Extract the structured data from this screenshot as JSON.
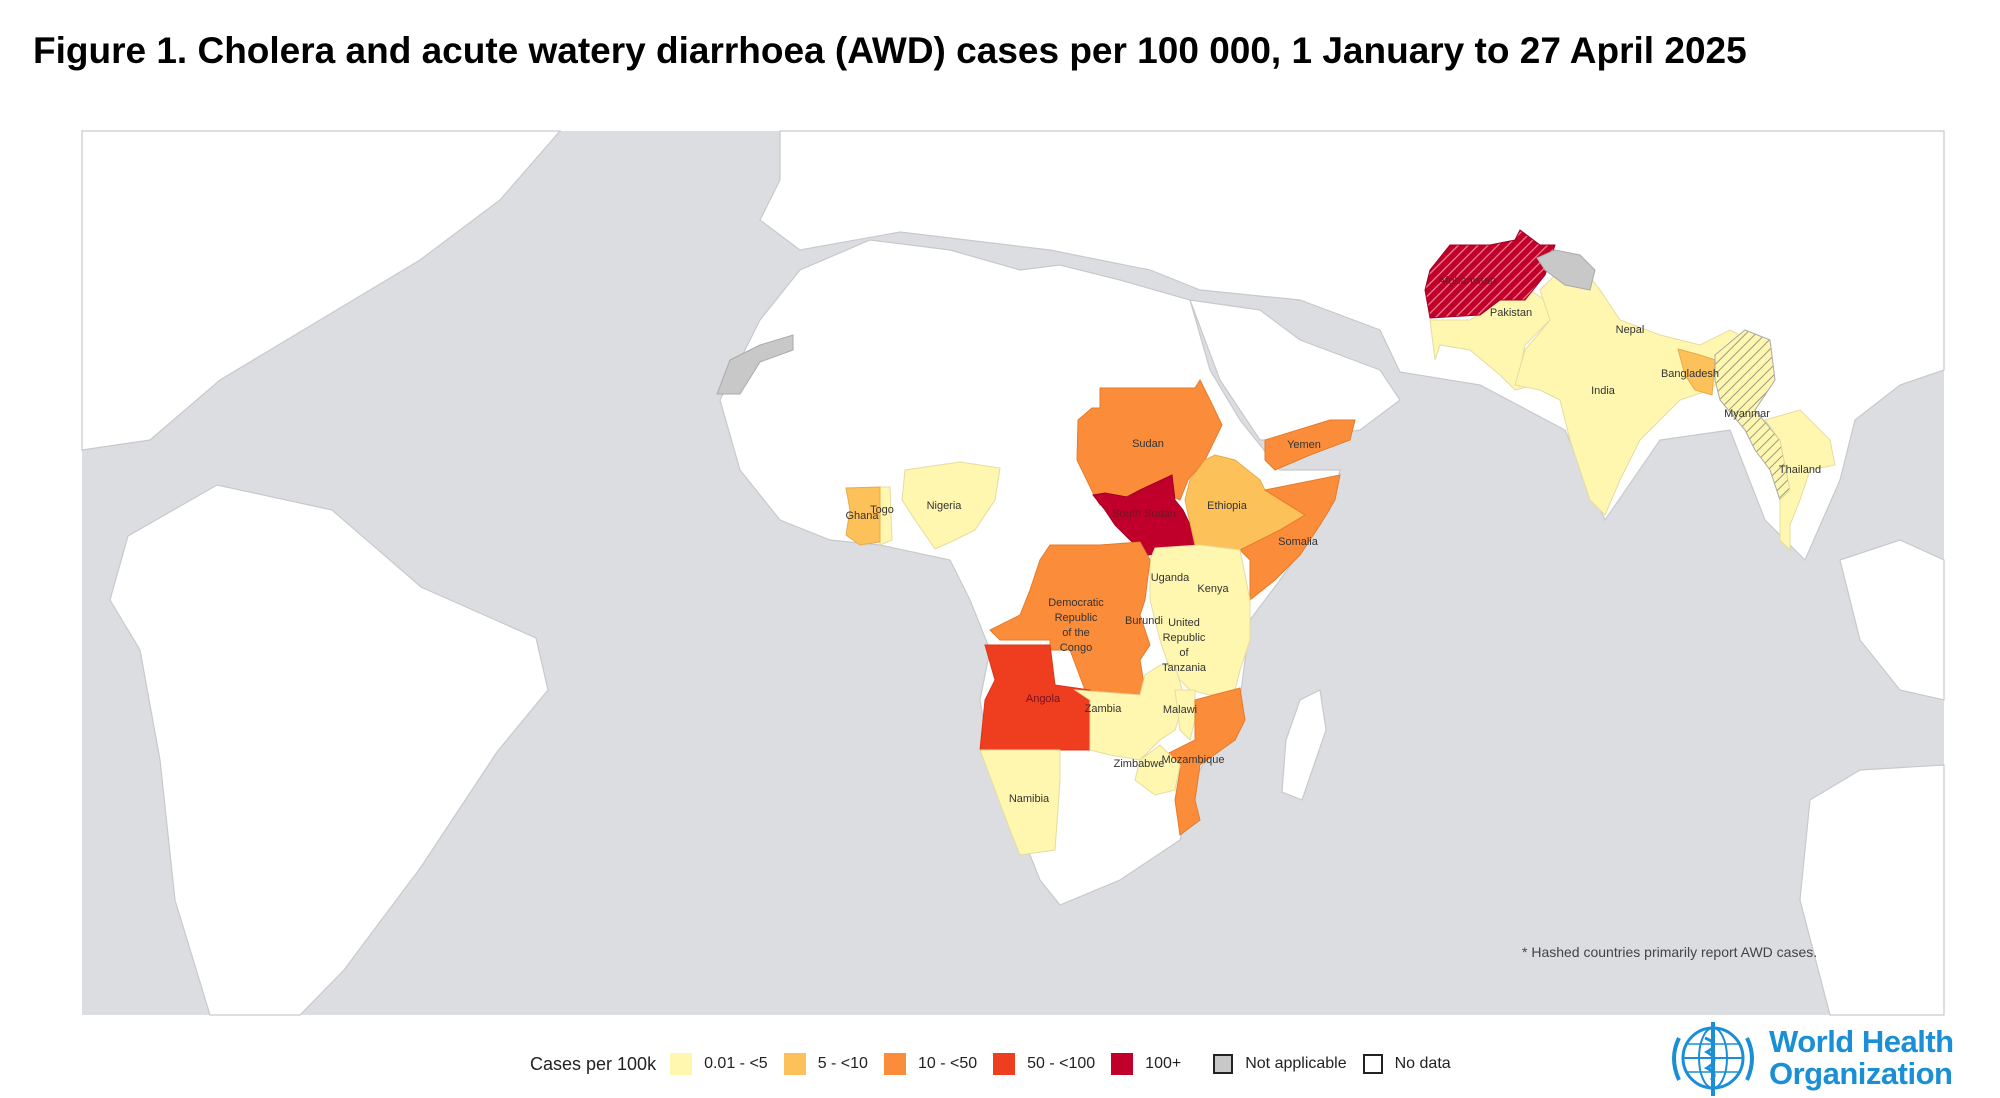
{
  "title": "Figure 1. Cholera and acute watery diarrhoea (AWD) cases per 100 000, 1 January to 27 April 2025",
  "footnote": "* Hashed countries primarily report AWD cases.",
  "colors": {
    "ocean": "#dcdde0",
    "land": "#ffffff",
    "cat1": "#fff7b0",
    "cat2": "#fdc15a",
    "cat3": "#fb8d3a",
    "cat4": "#ef3e1f",
    "cat5": "#c0002a",
    "not_applicable": "#c8c8c8",
    "who_blue": "#1a8fd6"
  },
  "legend": {
    "title": "Cases per 100k",
    "items": [
      {
        "label": "0.01 - <5",
        "color": "#fff7b0"
      },
      {
        "label": "5 - <10",
        "color": "#fdc15a"
      },
      {
        "label": "10 - <50",
        "color": "#fb8d3a"
      },
      {
        "label": "50 - <100",
        "color": "#ef3e1f"
      },
      {
        "label": "100+",
        "color": "#c0002a"
      },
      {
        "label": "Not applicable",
        "color": "#c8c8c8"
      },
      {
        "label": "No data",
        "color": "#ffffff"
      }
    ]
  },
  "countries": {
    "sudan": {
      "name": "Sudan",
      "category": "10 - <50"
    },
    "south_sudan": {
      "name": "South Sudan",
      "category": "100+"
    },
    "ethiopia": {
      "name": "Ethiopia",
      "category": "5 - <10"
    },
    "somalia": {
      "name": "Somalia",
      "category": "10 - <50"
    },
    "yemen": {
      "name": "Yemen",
      "category": "10 - <50"
    },
    "uganda": {
      "name": "Uganda",
      "category": "0.01 - <5"
    },
    "kenya": {
      "name": "Kenya",
      "category": "0.01 - <5"
    },
    "burundi": {
      "name": "Burundi",
      "category": "0.01 - <5"
    },
    "tanzania": {
      "name": [
        "United",
        "Republic",
        "of",
        "Tanzania"
      ],
      "category": "0.01 - <5"
    },
    "drc": {
      "name": [
        "Democratic",
        "Republic",
        "of the",
        "Congo"
      ],
      "category": "10 - <50"
    },
    "angola": {
      "name": "Angola",
      "category": "50 - <100"
    },
    "zambia": {
      "name": "Zambia",
      "category": "0.01 - <5"
    },
    "malawi": {
      "name": "Malawi",
      "category": "0.01 - <5"
    },
    "mozambique": {
      "name": "Mozambique",
      "category": "10 - <50"
    },
    "zimbabwe": {
      "name": "Zimbabwe",
      "category": "0.01 - <5"
    },
    "namibia": {
      "name": "Namibia",
      "category": "0.01 - <5"
    },
    "ghana": {
      "name": "Ghana",
      "category": "5 - <10"
    },
    "togo": {
      "name": "Togo",
      "category": "0.01 - <5"
    },
    "nigeria": {
      "name": "Nigeria",
      "category": "0.01 - <5"
    },
    "afghanistan": {
      "name": "Afghanistan",
      "category": "100+",
      "hashed": true
    },
    "pakistan": {
      "name": "Pakistan",
      "category": "0.01 - <5"
    },
    "india": {
      "name": "India",
      "category": "0.01 - <5"
    },
    "nepal": {
      "name": "Nepal",
      "category": "0.01 - <5"
    },
    "bangladesh": {
      "name": "Bangladesh",
      "category": "5 - <10"
    },
    "myanmar": {
      "name": "Myanmar",
      "category": "0.01 - <5",
      "hashed": true
    },
    "thailand": {
      "name": "Thailand",
      "category": "0.01 - <5"
    }
  },
  "logo": {
    "line1": "World Health",
    "line2": "Organization"
  }
}
